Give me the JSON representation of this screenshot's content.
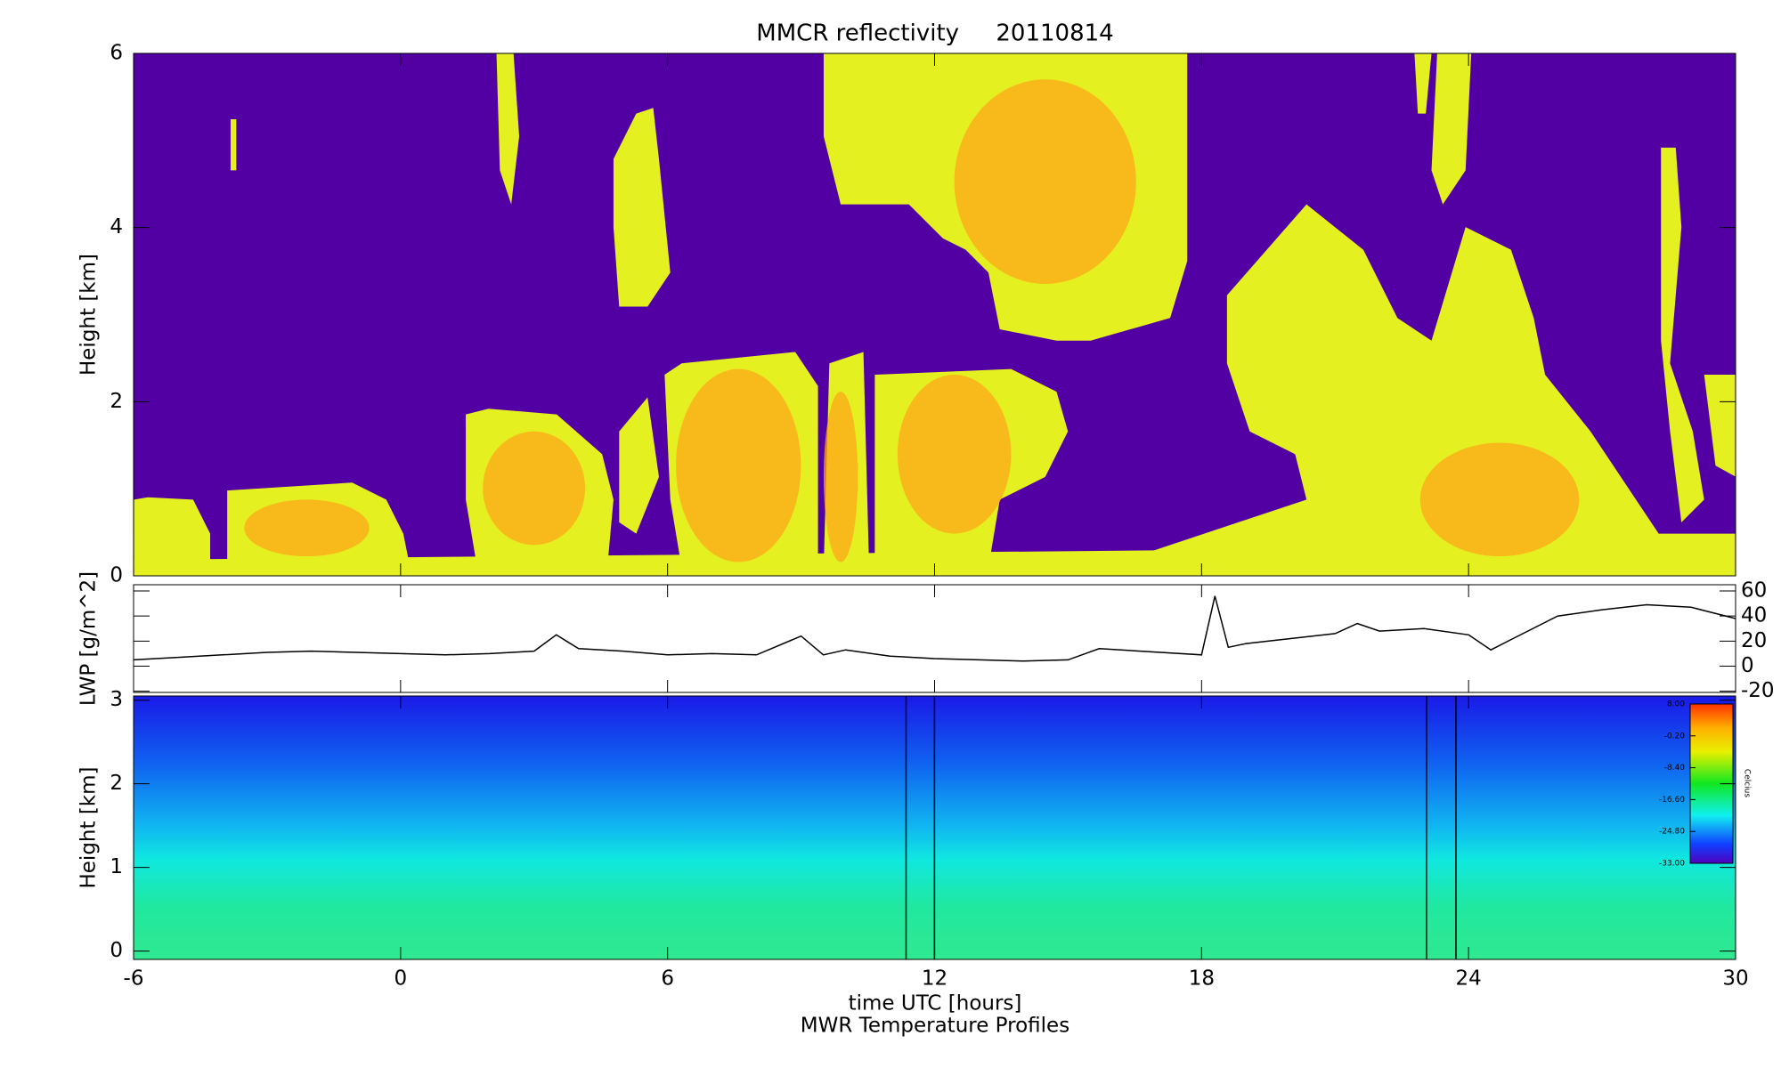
{
  "chart_data": [
    {
      "type": "heatmap",
      "title": "MMCR reflectivity     20110814",
      "ylabel": "Height [km]",
      "xlim": [
        -6,
        30
      ],
      "ylim": [
        0,
        6
      ],
      "yticks": [
        0,
        2,
        4,
        6
      ]
    },
    {
      "type": "line",
      "ylabel": "LWP [g/m^2]",
      "xlim": [
        -6,
        30
      ],
      "ylim": [
        -21,
        65
      ],
      "yticks": [
        -20,
        0,
        20,
        40,
        60
      ],
      "ytick_side": "right",
      "x": [
        -6,
        -5,
        -4,
        -3,
        -2,
        -1,
        0,
        1,
        2,
        3,
        3.5,
        4,
        5,
        6,
        7,
        8,
        9,
        9.5,
        10,
        11,
        12,
        13,
        14,
        15,
        15.7,
        18,
        18.3,
        18.6,
        19,
        20,
        21,
        21.5,
        22,
        23,
        24,
        24.5,
        25,
        26,
        27,
        28,
        29,
        30
      ],
      "series": [
        {
          "color": "#000000",
          "values": [
            5,
            7,
            9,
            11,
            12,
            11,
            10,
            9,
            10,
            12,
            25,
            14,
            12,
            9,
            10,
            9,
            24,
            9,
            13,
            8,
            6,
            5,
            4,
            5,
            14,
            9,
            56,
            15,
            18,
            22,
            26,
            34,
            28,
            30,
            25,
            13,
            22,
            40,
            45,
            49,
            47,
            38
          ]
        }
      ]
    },
    {
      "type": "heatmap",
      "title": "MWR Temperature Profiles",
      "xlabel": "time UTC [hours]",
      "ylabel": "Height [km]",
      "xlim": [
        -6,
        30
      ],
      "ylim": [
        -0.1,
        3.05
      ],
      "yticks": [
        0,
        1,
        2,
        3
      ],
      "xticks": [
        -6,
        0,
        6,
        12,
        18,
        24,
        30
      ],
      "colorbar": {
        "label": "Celcius",
        "lim": [
          -33,
          8
        ],
        "ticks": [
          {
            "value": 8,
            "label": "8.00"
          },
          {
            "value": -0.2,
            "label": "-0.20"
          },
          {
            "value": -8.4,
            "label": "-8.40"
          },
          {
            "value": -16.6,
            "label": "-16.60"
          },
          {
            "value": -24.8,
            "label": "-24.80"
          },
          {
            "value": -33,
            "label": "-33.00"
          }
        ]
      }
    }
  ]
}
